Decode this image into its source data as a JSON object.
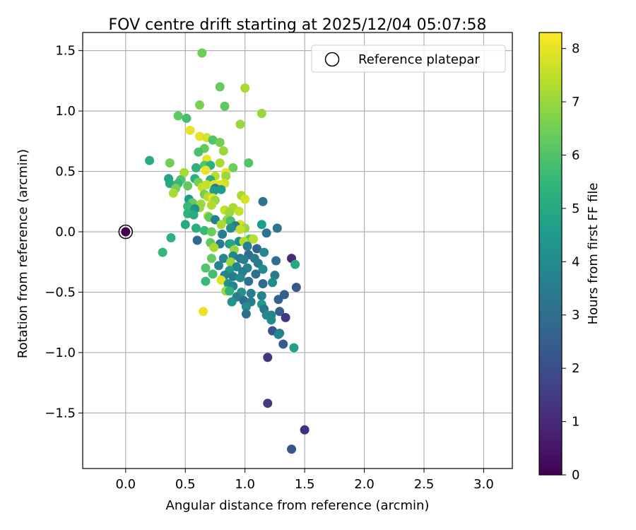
{
  "chart_data": {
    "type": "scatter",
    "title": "FOV centre drift starting at 2025/12/04 05:07:58",
    "xlabel": "Angular distance from reference (arcmin)",
    "ylabel": "Rotation from reference (arcmin)",
    "xlim": [
      -0.36,
      3.24
    ],
    "ylim": [
      -1.96,
      1.65
    ],
    "xticks": [
      0.0,
      0.5,
      1.0,
      1.5,
      2.0,
      2.5,
      3.0
    ],
    "xtick_labels": [
      "0.0",
      "0.5",
      "1.0",
      "1.5",
      "2.0",
      "2.5",
      "3.0"
    ],
    "yticks": [
      -1.5,
      -1.0,
      -0.5,
      0.0,
      0.5,
      1.0,
      1.5
    ],
    "ytick_labels": [
      "−1.5",
      "−1.0",
      "−0.5",
      "0.0",
      "0.5",
      "1.0",
      "1.5"
    ],
    "grid": true,
    "legend": {
      "position": "top-right",
      "label": "Reference platepar"
    },
    "reference_point": {
      "x": 0.0,
      "y": 0.0,
      "hours": 0.0
    },
    "colorbar": {
      "label": "Hours from first FF file",
      "range": [
        0,
        8.3
      ],
      "ticks": [
        0,
        1,
        2,
        3,
        4,
        5,
        6,
        7,
        8
      ],
      "tick_labels": [
        "0",
        "1",
        "2",
        "3",
        "4",
        "5",
        "6",
        "7",
        "8"
      ],
      "colormap": "viridis"
    },
    "colormap_stops": [
      "#440154",
      "#482878",
      "#3e4989",
      "#31688e",
      "#26828e",
      "#1f9e89",
      "#35b779",
      "#6ece58",
      "#b5de2b",
      "#fde725"
    ],
    "points": [
      [
        0.64,
        1.48,
        6.4
      ],
      [
        0.79,
        1.2,
        6.3
      ],
      [
        1.0,
        1.19,
        7.2
      ],
      [
        0.62,
        1.05,
        6.6
      ],
      [
        0.83,
        1.04,
        6.2
      ],
      [
        1.14,
        0.98,
        7.0
      ],
      [
        0.44,
        0.96,
        6.2
      ],
      [
        0.51,
        0.94,
        5.8
      ],
      [
        0.96,
        0.89,
        7.0
      ],
      [
        0.54,
        0.84,
        8.0
      ],
      [
        0.62,
        0.79,
        8.0
      ],
      [
        0.68,
        0.78,
        7.8
      ],
      [
        0.73,
        0.76,
        6.0
      ],
      [
        0.79,
        0.74,
        6.5
      ],
      [
        0.66,
        0.69,
        6.3
      ],
      [
        0.82,
        0.67,
        7.0
      ],
      [
        0.61,
        0.66,
        5.9
      ],
      [
        0.68,
        0.6,
        8.0
      ],
      [
        0.2,
        0.59,
        5.1
      ],
      [
        0.37,
        0.57,
        6.5
      ],
      [
        1.03,
        0.57,
        6.0
      ],
      [
        0.79,
        0.57,
        7.2
      ],
      [
        0.66,
        0.55,
        6.0
      ],
      [
        0.71,
        0.55,
        5.2
      ],
      [
        0.59,
        0.53,
        5.3
      ],
      [
        0.9,
        0.53,
        6.4
      ],
      [
        0.67,
        0.51,
        8.0
      ],
      [
        0.84,
        0.49,
        8.0
      ],
      [
        0.49,
        0.49,
        7.2
      ],
      [
        0.75,
        0.46,
        7.4
      ],
      [
        0.84,
        0.46,
        7.0
      ],
      [
        0.36,
        0.44,
        4.8
      ],
      [
        0.58,
        0.44,
        5.2
      ],
      [
        0.46,
        0.43,
        5.9
      ],
      [
        0.71,
        0.43,
        5.2
      ],
      [
        0.61,
        0.41,
        6.5
      ],
      [
        0.37,
        0.4,
        5.0
      ],
      [
        0.44,
        0.4,
        5.6
      ],
      [
        0.83,
        0.4,
        7.8
      ],
      [
        0.68,
        0.39,
        7.5
      ],
      [
        0.74,
        0.39,
        8.0
      ],
      [
        0.79,
        0.39,
        7.9
      ],
      [
        0.52,
        0.38,
        6.3
      ],
      [
        0.64,
        0.37,
        7.6
      ],
      [
        0.42,
        0.36,
        6.6
      ],
      [
        0.75,
        0.36,
        3.3
      ],
      [
        0.8,
        0.35,
        4.5
      ],
      [
        0.74,
        0.34,
        4.6
      ],
      [
        0.4,
        0.32,
        7.2
      ],
      [
        0.66,
        0.31,
        6.5
      ],
      [
        0.97,
        0.3,
        7.2
      ],
      [
        0.69,
        0.29,
        7.4
      ],
      [
        0.73,
        0.28,
        8.0
      ],
      [
        0.53,
        0.27,
        4.5
      ],
      [
        1.0,
        0.27,
        7.8
      ],
      [
        0.75,
        0.26,
        7.0
      ],
      [
        1.15,
        0.25,
        3.2
      ],
      [
        0.56,
        0.24,
        6.3
      ],
      [
        0.63,
        0.23,
        7.1
      ],
      [
        0.72,
        0.22,
        7.3
      ],
      [
        0.52,
        0.21,
        5.6
      ],
      [
        0.62,
        0.2,
        7.0
      ],
      [
        0.9,
        0.2,
        7.2
      ],
      [
        0.58,
        0.19,
        4.2
      ],
      [
        0.83,
        0.18,
        7.5
      ],
      [
        0.95,
        0.17,
        7.6
      ],
      [
        0.87,
        0.16,
        7.0
      ],
      [
        0.52,
        0.15,
        5.4
      ],
      [
        0.57,
        0.14,
        5.1
      ],
      [
        0.69,
        0.13,
        7.4
      ],
      [
        0.7,
        0.12,
        6.2
      ],
      [
        0.85,
        0.1,
        6.8
      ],
      [
        0.75,
        0.1,
        3.6
      ],
      [
        0.88,
        0.09,
        5.8
      ],
      [
        0.8,
        0.06,
        7.2
      ],
      [
        0.96,
        0.06,
        7.8
      ],
      [
        0.5,
        0.06,
        5.0
      ],
      [
        1.14,
        0.06,
        4.6
      ],
      [
        0.92,
        0.05,
        3.5
      ],
      [
        0.88,
        0.03,
        4.1
      ],
      [
        1.27,
        0.03,
        3.3
      ],
      [
        0.59,
        0.03,
        5.2
      ],
      [
        1.0,
        0.03,
        7.0
      ],
      [
        0.96,
        0.02,
        7.6
      ],
      [
        0.66,
        0.01,
        5.6
      ],
      [
        0.72,
        0.0,
        6.4
      ],
      [
        1.18,
        -0.01,
        3.2
      ],
      [
        0.81,
        -0.02,
        3.6
      ],
      [
        0.38,
        -0.05,
        5.3
      ],
      [
        1.04,
        -0.06,
        6.0
      ],
      [
        1.07,
        -0.06,
        7.4
      ],
      [
        0.6,
        -0.07,
        2.8
      ],
      [
        0.95,
        -0.08,
        4.0
      ],
      [
        0.99,
        -0.08,
        7.3
      ],
      [
        0.71,
        -0.09,
        6.2
      ],
      [
        0.79,
        -0.1,
        3.4
      ],
      [
        0.87,
        -0.1,
        3.6
      ],
      [
        0.88,
        -0.1,
        4.9
      ],
      [
        1.02,
        -0.12,
        3.5
      ],
      [
        0.74,
        -0.13,
        7.2
      ],
      [
        1.1,
        -0.14,
        2.6
      ],
      [
        0.91,
        -0.15,
        7.0
      ],
      [
        0.31,
        -0.17,
        5.5
      ],
      [
        1.16,
        -0.17,
        3.9
      ],
      [
        1.03,
        -0.19,
        2.9
      ],
      [
        0.9,
        -0.2,
        3.8
      ],
      [
        0.82,
        -0.22,
        3.8
      ],
      [
        0.72,
        -0.22,
        6.3
      ],
      [
        1.39,
        -0.22,
        1.0
      ],
      [
        0.96,
        -0.22,
        3.3
      ],
      [
        1.08,
        -0.22,
        3.4
      ],
      [
        0.99,
        -0.23,
        3.6
      ],
      [
        1.26,
        -0.24,
        3.0
      ],
      [
        0.88,
        -0.25,
        7.0
      ],
      [
        1.11,
        -0.26,
        3.4
      ],
      [
        1.42,
        -0.27,
        5.0
      ],
      [
        0.78,
        -0.28,
        3.8
      ],
      [
        0.93,
        -0.29,
        3.8
      ],
      [
        0.67,
        -0.3,
        6.0
      ],
      [
        1.02,
        -0.3,
        3.7
      ],
      [
        1.15,
        -0.31,
        4.0
      ],
      [
        0.87,
        -0.32,
        4.5
      ],
      [
        0.98,
        -0.33,
        3.5
      ],
      [
        0.73,
        -0.35,
        5.8
      ],
      [
        1.09,
        -0.35,
        3.1
      ],
      [
        0.83,
        -0.36,
        3.7
      ],
      [
        0.9,
        -0.37,
        3.4
      ],
      [
        1.25,
        -0.36,
        3.4
      ],
      [
        0.96,
        -0.38,
        4.0
      ],
      [
        0.8,
        -0.4,
        7.9
      ],
      [
        0.67,
        -0.41,
        5.6
      ],
      [
        1.03,
        -0.41,
        3.1
      ],
      [
        1.23,
        -0.42,
        4.0
      ],
      [
        1.15,
        -0.43,
        2.9
      ],
      [
        0.86,
        -0.43,
        4.2
      ],
      [
        0.9,
        -0.45,
        3.7
      ],
      [
        1.43,
        -0.46,
        2.3
      ],
      [
        0.84,
        -0.49,
        7.0
      ],
      [
        0.87,
        -0.49,
        5.3
      ],
      [
        0.97,
        -0.5,
        4.2
      ],
      [
        1.05,
        -0.51,
        3.6
      ],
      [
        1.33,
        -0.52,
        2.5
      ],
      [
        1.14,
        -0.53,
        3.7
      ],
      [
        0.93,
        -0.54,
        3.5
      ],
      [
        1.28,
        -0.56,
        2.6
      ],
      [
        0.99,
        -0.57,
        3.0
      ],
      [
        0.89,
        -0.58,
        4.2
      ],
      [
        1.05,
        -0.58,
        3.5
      ],
      [
        1.14,
        -0.6,
        4.5
      ],
      [
        1.01,
        -0.62,
        4.0
      ],
      [
        1.16,
        -0.64,
        3.3
      ],
      [
        0.65,
        -0.66,
        8.0
      ],
      [
        1.29,
        -0.66,
        2.5
      ],
      [
        1.01,
        -0.68,
        3.1
      ],
      [
        1.18,
        -0.69,
        3.9
      ],
      [
        1.22,
        -0.69,
        3.7
      ],
      [
        1.34,
        -0.71,
        1.4
      ],
      [
        1.22,
        -0.73,
        4.0
      ],
      [
        1.23,
        -0.82,
        2.2
      ],
      [
        1.29,
        -0.84,
        3.3
      ],
      [
        1.28,
        -0.85,
        3.8
      ],
      [
        1.32,
        -0.93,
        2.4
      ],
      [
        1.41,
        -0.96,
        4.7
      ],
      [
        1.19,
        -1.04,
        1.3
      ],
      [
        1.19,
        -1.42,
        1.4
      ],
      [
        1.5,
        -1.64,
        1.1
      ],
      [
        1.39,
        -1.8,
        2.3
      ]
    ]
  }
}
